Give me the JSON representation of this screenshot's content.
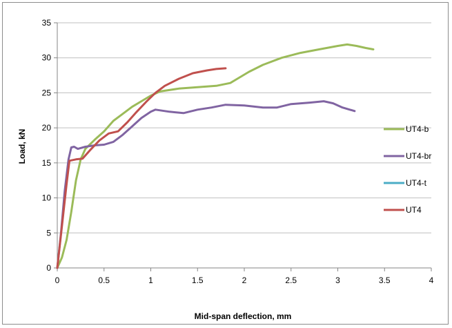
{
  "chart_data": {
    "type": "line",
    "title": "",
    "xlabel": "Mid-span deflection, mm",
    "ylabel": "Load, kN",
    "xlim": [
      0,
      4
    ],
    "ylim": [
      0,
      35
    ],
    "xticks": [
      0,
      0.5,
      1,
      1.5,
      2,
      2.5,
      3,
      3.5,
      4
    ],
    "yticks": [
      0,
      5,
      10,
      15,
      20,
      25,
      30,
      35
    ],
    "xtick_labels": [
      "0",
      "0.5",
      "1",
      "1.5",
      "2",
      "2.5",
      "3",
      "3.5",
      "4"
    ],
    "ytick_labels": [
      "0",
      "5",
      "10",
      "15",
      "20",
      "25",
      "30",
      "35"
    ],
    "grid": "horizontal",
    "legend_position": "right",
    "series": [
      {
        "name": "UT4-b",
        "color": "#9bbb59",
        "points": [
          [
            0,
            0
          ],
          [
            0.05,
            1.5
          ],
          [
            0.1,
            4
          ],
          [
            0.15,
            8
          ],
          [
            0.2,
            12.5
          ],
          [
            0.25,
            15.5
          ],
          [
            0.3,
            17
          ],
          [
            0.4,
            18.3
          ],
          [
            0.5,
            19.5
          ],
          [
            0.6,
            21
          ],
          [
            0.7,
            22
          ],
          [
            0.8,
            23
          ],
          [
            0.9,
            23.8
          ],
          [
            1.0,
            24.6
          ],
          [
            1.1,
            25.2
          ],
          [
            1.3,
            25.6
          ],
          [
            1.5,
            25.8
          ],
          [
            1.7,
            26.0
          ],
          [
            1.85,
            26.4
          ],
          [
            1.95,
            27.2
          ],
          [
            2.05,
            28.0
          ],
          [
            2.2,
            29.0
          ],
          [
            2.4,
            30.0
          ],
          [
            2.6,
            30.7
          ],
          [
            2.8,
            31.2
          ],
          [
            3.0,
            31.7
          ],
          [
            3.1,
            31.9
          ],
          [
            3.2,
            31.7
          ],
          [
            3.3,
            31.4
          ],
          [
            3.38,
            31.2
          ]
        ]
      },
      {
        "name": "UT4-br",
        "color": "#8064a2",
        "points": [
          [
            0,
            0
          ],
          [
            0.04,
            5
          ],
          [
            0.08,
            11
          ],
          [
            0.12,
            15.5
          ],
          [
            0.15,
            17.2
          ],
          [
            0.18,
            17.3
          ],
          [
            0.22,
            17.0
          ],
          [
            0.3,
            17.3
          ],
          [
            0.4,
            17.5
          ],
          [
            0.5,
            17.6
          ],
          [
            0.6,
            18.0
          ],
          [
            0.7,
            19.0
          ],
          [
            0.8,
            20.2
          ],
          [
            0.9,
            21.4
          ],
          [
            1.0,
            22.3
          ],
          [
            1.05,
            22.6
          ],
          [
            1.2,
            22.3
          ],
          [
            1.35,
            22.1
          ],
          [
            1.5,
            22.6
          ],
          [
            1.65,
            22.9
          ],
          [
            1.8,
            23.3
          ],
          [
            2.0,
            23.2
          ],
          [
            2.2,
            22.9
          ],
          [
            2.35,
            22.9
          ],
          [
            2.5,
            23.4
          ],
          [
            2.7,
            23.6
          ],
          [
            2.85,
            23.8
          ],
          [
            2.95,
            23.5
          ],
          [
            3.05,
            22.9
          ],
          [
            3.18,
            22.4
          ]
        ]
      },
      {
        "name": "UT4-t",
        "color": "#4bacc6",
        "points": []
      },
      {
        "name": "UT4",
        "color": "#c0504d",
        "points": [
          [
            0,
            0
          ],
          [
            0.05,
            6
          ],
          [
            0.1,
            12
          ],
          [
            0.13,
            15.3
          ],
          [
            0.2,
            15.5
          ],
          [
            0.27,
            15.6
          ],
          [
            0.35,
            16.8
          ],
          [
            0.45,
            18.2
          ],
          [
            0.55,
            19.2
          ],
          [
            0.65,
            19.5
          ],
          [
            0.75,
            20.8
          ],
          [
            0.85,
            22.3
          ],
          [
            0.95,
            23.7
          ],
          [
            1.05,
            25.0
          ],
          [
            1.15,
            26.0
          ],
          [
            1.3,
            27.0
          ],
          [
            1.45,
            27.8
          ],
          [
            1.6,
            28.2
          ],
          [
            1.7,
            28.4
          ],
          [
            1.8,
            28.5
          ]
        ]
      }
    ]
  }
}
